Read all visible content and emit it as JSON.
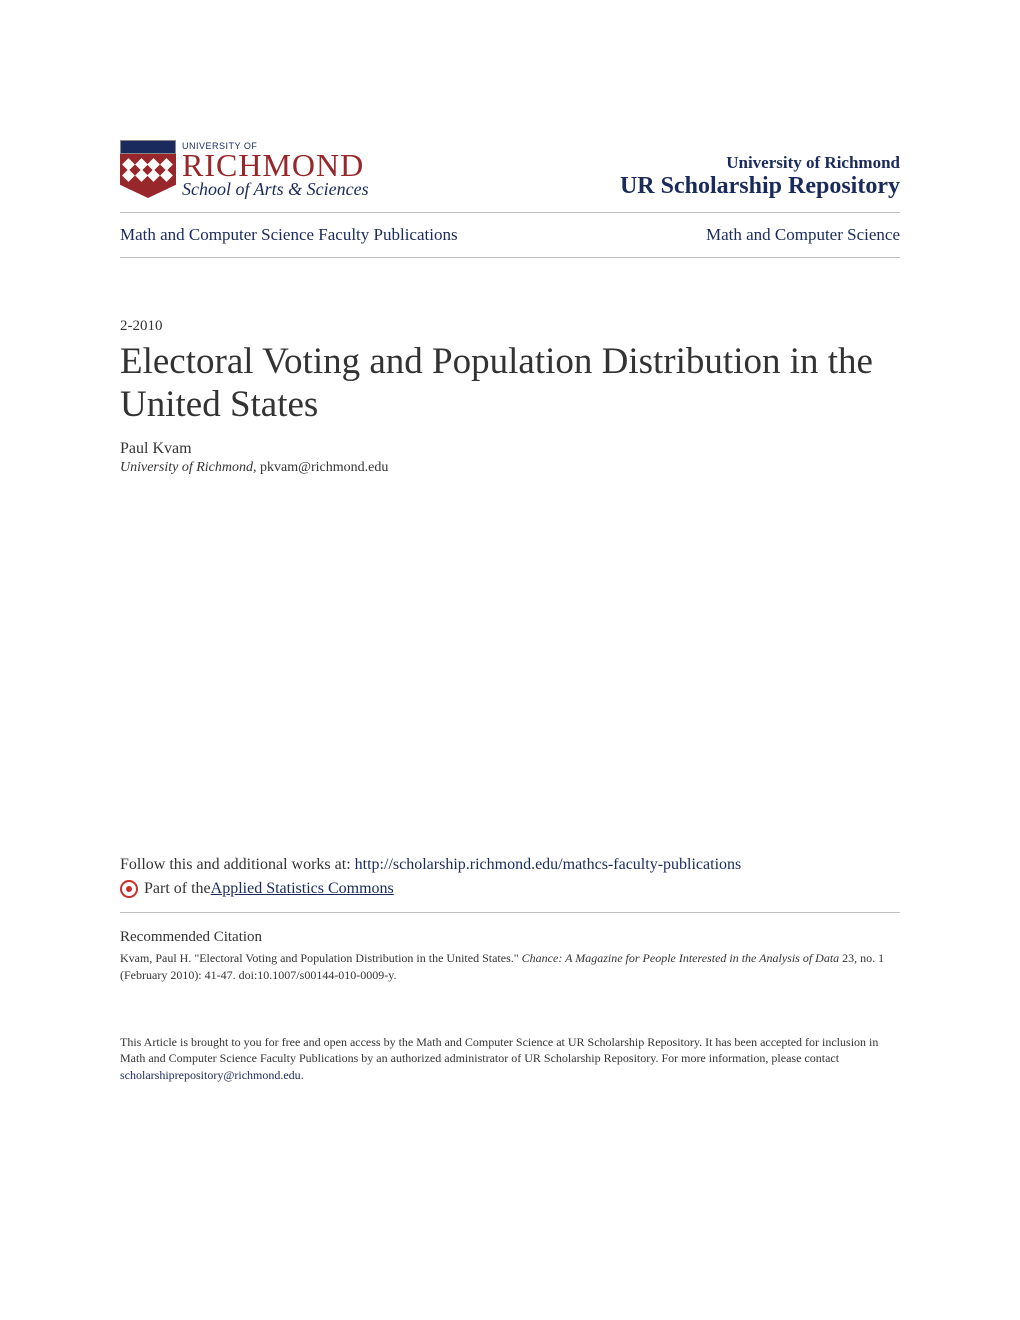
{
  "header": {
    "logo": {
      "univ_label": "UNIVERSITY OF",
      "richmond": "RICHMOND",
      "school": "School of Arts & Sciences"
    },
    "repo": {
      "university": "University of Richmond",
      "repository": "UR Scholarship Repository"
    }
  },
  "breadcrumb": {
    "left": "Math and Computer Science Faculty Publications",
    "right": "Math and Computer Science"
  },
  "article": {
    "date": "2-2010",
    "title": "Electoral Voting and Population Distribution in the United States",
    "author": "Paul Kvam",
    "affiliation_univ": "University of Richmond",
    "affiliation_email": ", pkvam@richmond.edu"
  },
  "follow": {
    "prefix": "Follow this and additional works at: ",
    "url": "http://scholarship.richmond.edu/mathcs-faculty-publications",
    "part_of_prefix": " Part of the ",
    "commons_link": "Applied Statistics Commons"
  },
  "citation": {
    "heading": "Recommended Citation",
    "text_part1": "Kvam, Paul H. \"Electoral Voting and Population Distribution in the United States.\" ",
    "journal": "Chance: A Magazine for People Interested in the Analysis of Data",
    "text_part2": " 23, no. 1 (February 2010): 41-47. doi:10.1007/s00144-010-0009-y."
  },
  "footer": {
    "text_part1": "This Article is brought to you for free and open access by the Math and Computer Science at UR Scholarship Repository. It has been accepted for inclusion in Math and Computer Science Faculty Publications by an authorized administrator of UR Scholarship Repository. For more information, please contact ",
    "email": "scholarshiprepository@richmond.edu",
    "text_part2": "."
  },
  "colors": {
    "brand_red": "#98272b",
    "brand_blue": "#1a2a5c",
    "text": "#333333",
    "border": "#c0c0c0",
    "background": "#ffffff"
  }
}
